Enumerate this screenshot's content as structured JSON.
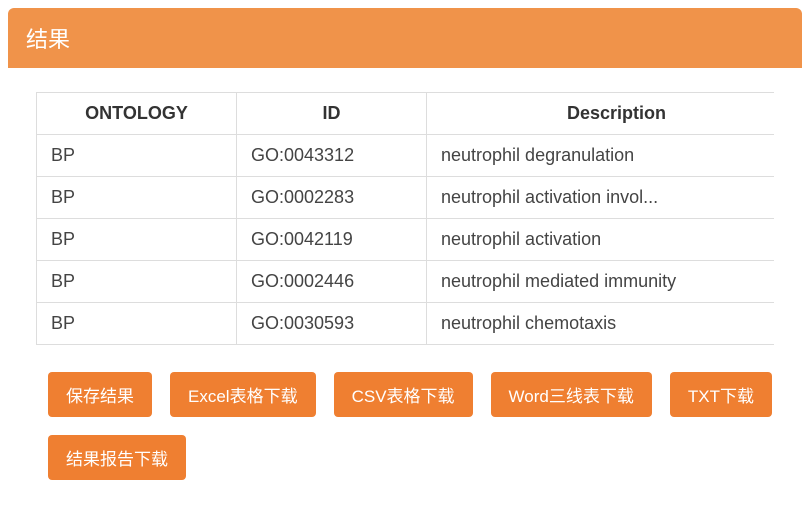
{
  "colors": {
    "header_bg": "#f0934a",
    "header_text": "#ffffff",
    "button_bg": "#ef7f31",
    "button_text": "#ffffff",
    "table_border": "#dddddd",
    "text": "#333333",
    "scrollbar_track": "#eeeeee",
    "scrollbar_thumb": "#cfcfcf"
  },
  "panel": {
    "title": "结果"
  },
  "table": {
    "columns": [
      "ONTOLOGY",
      "ID",
      "Description"
    ],
    "rows": [
      [
        "BP",
        "GO:0043312",
        "neutrophil degranulation"
      ],
      [
        "BP",
        "GO:0002283",
        "neutrophil activation invol..."
      ],
      [
        "BP",
        "GO:0042119",
        "neutrophil activation"
      ],
      [
        "BP",
        "GO:0002446",
        "neutrophil mediated immunity"
      ],
      [
        "BP",
        "GO:0030593",
        "neutrophil chemotaxis"
      ]
    ]
  },
  "buttons": {
    "save": "保存结果",
    "excel": "Excel表格下载",
    "csv": "CSV表格下载",
    "word": "Word三线表下载",
    "txt": "TXT下载",
    "report": "结果报告下载"
  }
}
